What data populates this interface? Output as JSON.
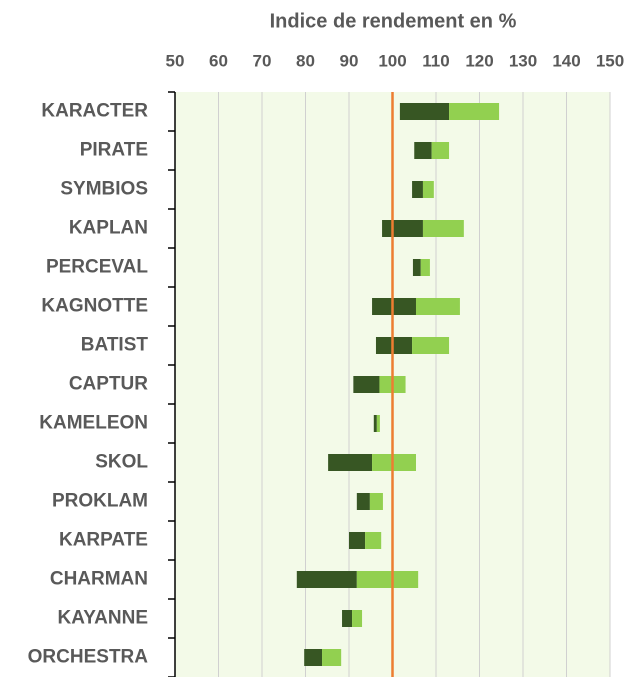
{
  "chart_data": {
    "type": "floating-bar",
    "title": "Indice de rendement en %",
    "categories": [
      "KARACTER",
      "PIRATE",
      "SYMBIOS",
      "KAPLAN",
      "PERCEVAL",
      "KAGNOTTE",
      "BATIST",
      "CAPTUR",
      "KAMELEON",
      "SKOL",
      "PROKLAM",
      "KARPATE",
      "CHARMAN",
      "KAYANNE",
      "ORCHESTRA"
    ],
    "ranges": [
      [
        101.7,
        113,
        124.5
      ],
      [
        105,
        109,
        113
      ],
      [
        104.5,
        107,
        109.5
      ],
      [
        97.6,
        107,
        116.4
      ],
      [
        104.7,
        106.5,
        108.6
      ],
      [
        95.3,
        105.4,
        115.5
      ],
      [
        96.2,
        104.5,
        113
      ],
      [
        91,
        97,
        103
      ],
      [
        95.7,
        96.4,
        97.1
      ],
      [
        85.2,
        95.3,
        105.4
      ],
      [
        91.8,
        94.8,
        97.8
      ],
      [
        90,
        93.7,
        97.4
      ],
      [
        78,
        91.8,
        105.9
      ],
      [
        88.4,
        90.7,
        93
      ],
      [
        79.7,
        83.8,
        88.2
      ]
    ],
    "colors": [
      "#375623",
      "#92d050"
    ],
    "reference_line": 100,
    "reference_color": "#ed7d31",
    "xlim": [
      50,
      150
    ],
    "xticks": [
      50,
      60,
      70,
      80,
      90,
      100,
      110,
      120,
      130,
      140,
      150
    ],
    "grid": true,
    "background": "#f3fae8"
  }
}
